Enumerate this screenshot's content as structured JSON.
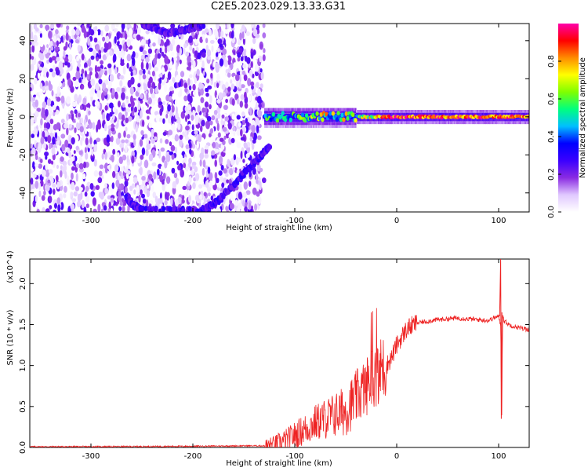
{
  "title": "C2E5.2023.029.13.33.G31",
  "chart_data": [
    {
      "type": "heatmap",
      "title": "C2E5.2023.029.13.33.G31",
      "xlabel": "Height of straight line (km)",
      "ylabel": "Frequency (Hz)",
      "xlim": [
        -360,
        130
      ],
      "ylim": [
        -50,
        49
      ],
      "x_ticks": [
        -300,
        -200,
        -100,
        0,
        100
      ],
      "x_tick_labels": [
        "-300",
        "-200",
        "-100",
        "0",
        "100"
      ],
      "y_ticks": [
        -40,
        -20,
        0,
        20,
        40
      ],
      "y_tick_labels": [
        "-40",
        "-20",
        "0",
        "20",
        "40"
      ],
      "colorbar": {
        "label": "Normalized spectral amplitude",
        "range": [
          0.0,
          1.0
        ],
        "ticks": [
          0.0,
          0.2,
          0.4,
          0.6,
          0.8
        ],
        "tick_labels": [
          "0.0",
          "0.2",
          "0.4",
          "0.6",
          "0.8"
        ],
        "colormap": [
          "#ffffff",
          "#e0c8ff",
          "#8a2be2",
          "#3b00ff",
          "#0000ff",
          "#00bfff",
          "#00ff7f",
          "#7fff00",
          "#ffff00",
          "#ff8c00",
          "#ff0000",
          "#ff00aa"
        ]
      },
      "features": [
        {
          "name": "noise",
          "x_range": [
            -360,
            -130
          ],
          "y_range": [
            -50,
            49
          ],
          "amplitude": 0.12
        },
        {
          "name": "upper-arc",
          "points": [
            [
              -250,
              49
            ],
            [
              -240,
              47
            ],
            [
              -225,
              44
            ],
            [
              -205,
              46
            ],
            [
              -190,
              48
            ]
          ],
          "amplitude": 0.18
        },
        {
          "name": "lower-arc",
          "points": [
            [
              -265,
              -42
            ],
            [
              -260,
              -46
            ],
            [
              -250,
              -49
            ],
            [
              -190,
              -49
            ],
            [
              -175,
              -44
            ],
            [
              -160,
              -36
            ],
            [
              -140,
              -24
            ],
            [
              -125,
              -16
            ]
          ],
          "amplitude": 0.2
        },
        {
          "name": "signal-line",
          "points": [
            [
              -130,
              0
            ],
            [
              -100,
              0
            ],
            [
              0,
              0
            ],
            [
              130,
              0
            ]
          ],
          "amplitude": 0.9
        }
      ],
      "grid": false
    },
    {
      "type": "line",
      "xlabel": "Height of straight line (km)",
      "ylabel": "SNR (10 * v/v)",
      "y_multiplier": "(x10^4)",
      "xlim": [
        -360,
        130
      ],
      "ylim": [
        0,
        2.3
      ],
      "x_ticks": [
        -300,
        -200,
        -100,
        0,
        100
      ],
      "x_tick_labels": [
        "-300",
        "-200",
        "-100",
        "0",
        "100"
      ],
      "y_ticks": [
        0.0,
        0.5,
        1.0,
        1.5,
        2.0
      ],
      "y_tick_labels": [
        "0.0",
        "0.5",
        "1.0",
        "1.5",
        "2.0"
      ],
      "line_color": "#ee2222",
      "series": [
        {
          "x": [
            -360,
            -300,
            -250,
            -200,
            -150,
            -130,
            -120,
            -110,
            -100,
            -90,
            -80,
            -70,
            -60,
            -50,
            -40,
            -30,
            -25,
            -20,
            -15,
            -10,
            -5,
            0,
            10,
            20,
            30,
            40,
            50,
            60,
            70,
            80,
            90,
            95,
            100,
            102,
            103,
            104,
            105,
            110,
            120,
            130
          ],
          "y": [
            0.01,
            0.01,
            0.012,
            0.015,
            0.02,
            0.02,
            0.04,
            0.08,
            0.15,
            0.22,
            0.3,
            0.35,
            0.4,
            0.45,
            0.6,
            0.75,
            0.85,
            0.9,
            0.95,
            1.0,
            1.1,
            1.25,
            1.45,
            1.52,
            1.54,
            1.56,
            1.57,
            1.58,
            1.57,
            1.56,
            1.55,
            1.58,
            1.6,
            1.5,
            0.35,
            1.65,
            1.55,
            1.5,
            1.46,
            1.44
          ]
        }
      ],
      "grid": false
    }
  ]
}
